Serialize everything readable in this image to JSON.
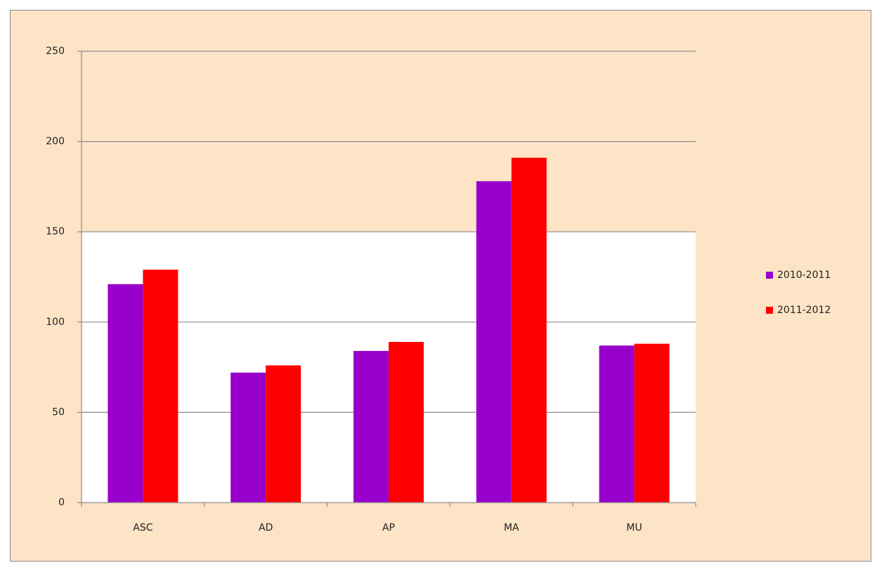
{
  "chart_data": {
    "type": "bar",
    "categories": [
      "ASC",
      "AD",
      "AP",
      "MA",
      "MU"
    ],
    "series": [
      {
        "name": "2010-2011",
        "color": "#9900cc",
        "values": [
          121,
          72,
          84,
          178,
          87
        ]
      },
      {
        "name": "2011-2012",
        "color": "#ff0000",
        "values": [
          129,
          76,
          89,
          191,
          88
        ]
      }
    ],
    "ylim": [
      0,
      250
    ],
    "yticks": [
      0,
      50,
      100,
      150,
      200,
      250
    ],
    "grid": true,
    "legend": "right"
  }
}
